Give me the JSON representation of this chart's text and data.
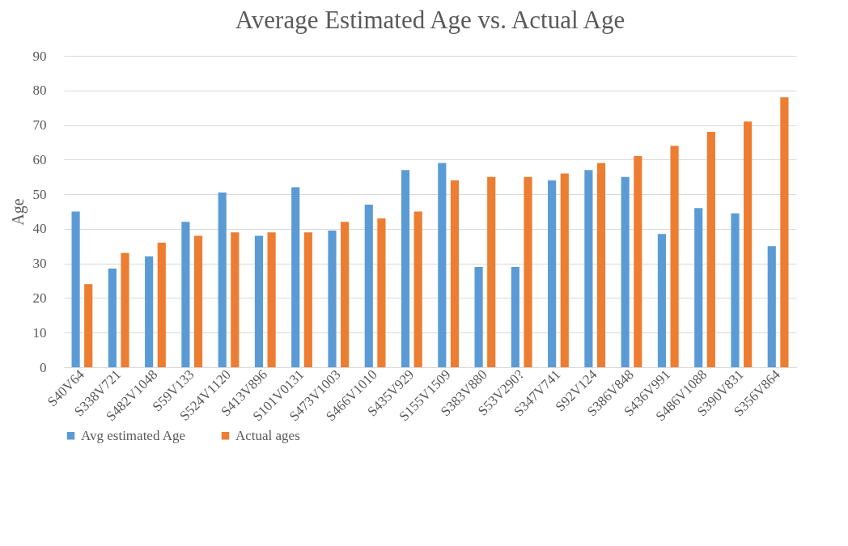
{
  "chart_data": {
    "type": "bar",
    "title": "Average Estimated Age vs. Actual Age",
    "ylabel": "Age",
    "categories": [
      "S40V64",
      "S338V721",
      "S482V1048",
      "S59V133",
      "S524V1120",
      "S413V896",
      "S101V0131",
      "S473V1003",
      "S466V1010",
      "S435V929",
      "S155V1509",
      "S383V880",
      "S53V290?",
      "S347V741",
      "S92V124",
      "S386V848",
      "S436V991",
      "S486V1088",
      "S390V831",
      "S356V864"
    ],
    "series": [
      {
        "name": "Avg estimated Age",
        "color": "#5b9bd5",
        "values": [
          45,
          28.5,
          32,
          42,
          50.5,
          38,
          52,
          39.5,
          47,
          57,
          59,
          29,
          29,
          54,
          57,
          55,
          38.5,
          46,
          44.5,
          35
        ]
      },
      {
        "name": "Actual ages",
        "color": "#ed7d31",
        "values": [
          24,
          33,
          36,
          38,
          39,
          39,
          39,
          42,
          43,
          45,
          54,
          55,
          55,
          56,
          59,
          61,
          64,
          68,
          71,
          78
        ]
      }
    ],
    "ylim": [
      0,
      90
    ],
    "yticks": [
      0,
      10,
      20,
      30,
      40,
      50,
      60,
      70,
      80,
      90
    ],
    "grid": "y",
    "legend": "bottom"
  }
}
